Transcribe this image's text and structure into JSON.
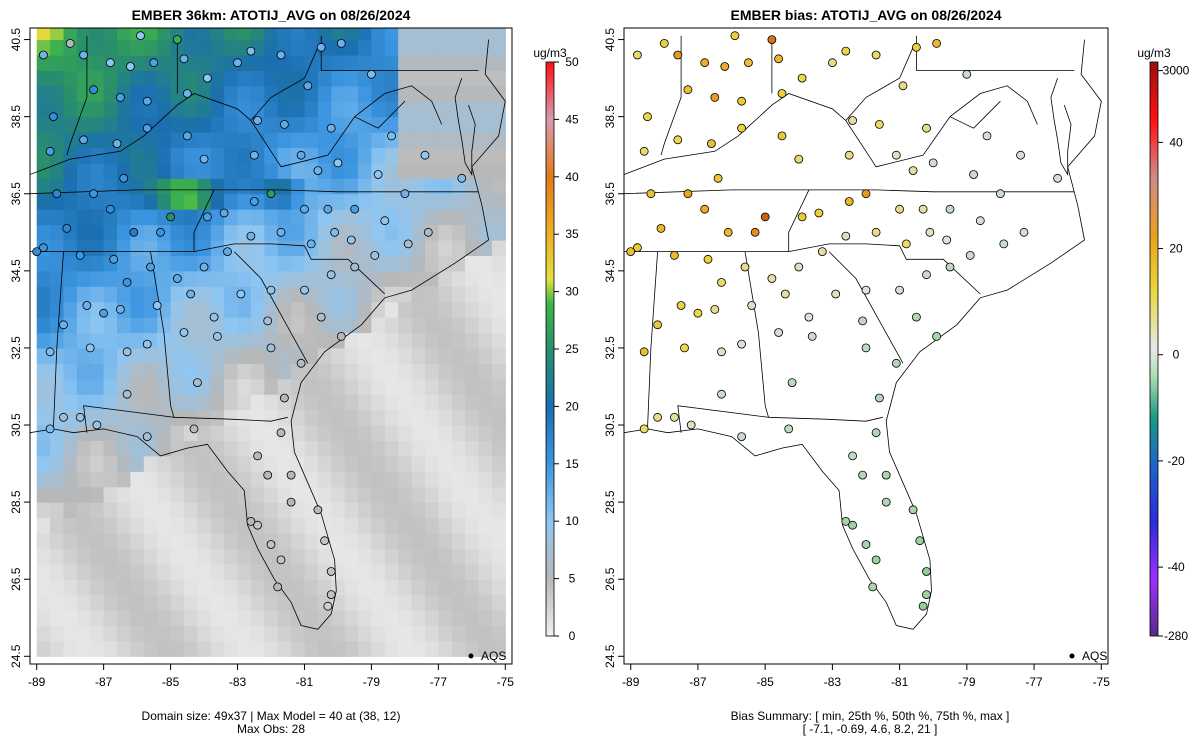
{
  "chart_data": [
    {
      "type": "map",
      "title": "EMBER 36km: ATOTIJ_AVG on 08/26/2024",
      "x_ticks": [
        "-89",
        "-87",
        "-85",
        "-83",
        "-81",
        "-79",
        "-77",
        "-75"
      ],
      "y_ticks": [
        "40.5",
        "38.5",
        "36.5",
        "34.5",
        "32.5",
        "30.5",
        "28.5",
        "26.5",
        "24.5"
      ],
      "xlim": [
        -89.2,
        -74.8
      ],
      "ylim": [
        24.3,
        40.8
      ],
      "colorbar": {
        "unit": "ug/m3",
        "ticks": [
          "0",
          "5",
          "10",
          "15",
          "20",
          "25",
          "30",
          "35",
          "40",
          "45",
          "50"
        ],
        "range": [
          0,
          50
        ]
      },
      "legend": "AQS",
      "caption": [
        "Domain size: 49x37 | Max Model = 40 at (38, 12)",
        "Max Obs: 28"
      ],
      "stations": [
        [
          -88.0,
          40.4,
          6
        ],
        [
          -87.6,
          40.1,
          12
        ],
        [
          -86.8,
          39.9,
          10
        ],
        [
          -86.2,
          39.8,
          10
        ],
        [
          -85.5,
          39.9,
          14
        ],
        [
          -84.6,
          40.0,
          12
        ],
        [
          -87.3,
          39.2,
          16
        ],
        [
          -86.5,
          39.0,
          14
        ],
        [
          -85.7,
          38.9,
          13
        ],
        [
          -84.5,
          39.1,
          12
        ],
        [
          -83.9,
          39.5,
          10
        ],
        [
          -83.0,
          39.9,
          12
        ],
        [
          -82.6,
          40.2,
          11
        ],
        [
          -81.7,
          40.1,
          12
        ],
        [
          -80.5,
          40.3,
          12
        ],
        [
          -79.9,
          40.4,
          12
        ],
        [
          -80.9,
          39.3,
          13
        ],
        [
          -82.4,
          38.4,
          12
        ],
        [
          -81.6,
          38.3,
          13
        ],
        [
          -80.2,
          38.2,
          12
        ],
        [
          -84.5,
          38.0,
          13
        ],
        [
          -85.7,
          38.2,
          14
        ],
        [
          -86.6,
          37.8,
          12
        ],
        [
          -87.6,
          37.9,
          13
        ],
        [
          -88.6,
          37.6,
          14
        ],
        [
          -84.0,
          37.4,
          12
        ],
        [
          -82.5,
          37.5,
          12
        ],
        [
          -81.1,
          37.5,
          13
        ],
        [
          -80.0,
          37.3,
          10
        ],
        [
          -78.8,
          37.0,
          10
        ],
        [
          -77.4,
          37.5,
          10
        ],
        [
          -76.3,
          36.9,
          11
        ],
        [
          -78.0,
          36.5,
          12
        ],
        [
          -79.5,
          36.1,
          14
        ],
        [
          -80.3,
          36.1,
          13
        ],
        [
          -81.0,
          36.1,
          13
        ],
        [
          -82.0,
          36.5,
          26
        ],
        [
          -82.5,
          36.3,
          14
        ],
        [
          -83.4,
          36.0,
          13
        ],
        [
          -83.9,
          35.9,
          14
        ],
        [
          -85.0,
          35.9,
          25
        ],
        [
          -85.3,
          35.5,
          15
        ],
        [
          -86.1,
          35.5,
          18
        ],
        [
          -86.8,
          36.1,
          16
        ],
        [
          -87.3,
          36.5,
          15
        ],
        [
          -88.1,
          35.6,
          17
        ],
        [
          -88.8,
          35.1,
          15
        ],
        [
          -89.0,
          35.0,
          16
        ],
        [
          -88.4,
          36.5,
          17
        ],
        [
          -87.7,
          34.9,
          15
        ],
        [
          -86.7,
          34.8,
          14
        ],
        [
          -86.3,
          34.2,
          15
        ],
        [
          -85.6,
          34.6,
          14
        ],
        [
          -84.8,
          34.3,
          13
        ],
        [
          -84.0,
          34.6,
          12
        ],
        [
          -83.3,
          35.0,
          13
        ],
        [
          -82.6,
          35.4,
          12
        ],
        [
          -81.7,
          35.5,
          12
        ],
        [
          -80.8,
          35.2,
          12
        ],
        [
          -80.1,
          35.5,
          11
        ],
        [
          -79.6,
          35.3,
          10
        ],
        [
          -78.6,
          35.8,
          9
        ],
        [
          -77.9,
          35.2,
          8
        ],
        [
          -77.3,
          35.5,
          7
        ],
        [
          -78.9,
          34.9,
          8
        ],
        [
          -79.5,
          34.6,
          7
        ],
        [
          -80.2,
          34.4,
          8
        ],
        [
          -81.0,
          34.0,
          9
        ],
        [
          -82.0,
          34.0,
          10
        ],
        [
          -82.9,
          33.9,
          10
        ],
        [
          -83.7,
          33.3,
          9
        ],
        [
          -84.4,
          33.9,
          12
        ],
        [
          -85.4,
          33.6,
          10
        ],
        [
          -86.5,
          33.5,
          12
        ],
        [
          -87.0,
          33.4,
          14
        ],
        [
          -87.5,
          33.6,
          12
        ],
        [
          -88.2,
          33.1,
          12
        ],
        [
          -88.6,
          32.4,
          11
        ],
        [
          -87.4,
          32.5,
          10
        ],
        [
          -86.3,
          32.4,
          8
        ],
        [
          -85.7,
          32.6,
          9
        ],
        [
          -84.6,
          32.9,
          10
        ],
        [
          -83.6,
          32.8,
          9
        ],
        [
          -82.0,
          32.5,
          8
        ],
        [
          -81.1,
          32.1,
          6
        ],
        [
          -82.1,
          33.2,
          7
        ],
        [
          -80.5,
          33.3,
          6
        ],
        [
          -79.9,
          32.8,
          5
        ],
        [
          -81.6,
          31.2,
          5
        ],
        [
          -84.2,
          31.6,
          7
        ],
        [
          -86.3,
          31.3,
          6
        ],
        [
          -87.7,
          30.7,
          9
        ],
        [
          -88.2,
          30.7,
          8
        ],
        [
          -88.6,
          30.4,
          11
        ],
        [
          -87.2,
          30.5,
          9
        ],
        [
          -85.7,
          30.2,
          7
        ],
        [
          -84.3,
          30.4,
          6
        ],
        [
          -82.4,
          29.7,
          6
        ],
        [
          -81.7,
          30.3,
          5
        ],
        [
          -81.4,
          29.2,
          5
        ],
        [
          -82.1,
          29.2,
          5
        ],
        [
          -82.6,
          28.0,
          5
        ],
        [
          -81.4,
          28.5,
          5
        ],
        [
          -80.6,
          28.3,
          5
        ],
        [
          -82.4,
          27.9,
          4
        ],
        [
          -82.0,
          27.4,
          4
        ],
        [
          -81.7,
          27.0,
          4
        ],
        [
          -80.4,
          27.5,
          4
        ],
        [
          -80.2,
          26.7,
          4
        ],
        [
          -80.2,
          26.1,
          4
        ],
        [
          -81.8,
          26.3,
          5
        ],
        [
          -80.3,
          25.8,
          3
        ],
        [
          -84.8,
          40.5,
          28
        ],
        [
          -85.9,
          40.6,
          10
        ],
        [
          -88.8,
          40.1,
          12
        ],
        [
          -78.4,
          38.0,
          11
        ],
        [
          -80.6,
          37.1,
          12
        ],
        [
          -86.4,
          36.9,
          15
        ],
        [
          -88.5,
          38.5,
          16
        ],
        [
          -79.0,
          39.6,
          11
        ]
      ]
    },
    {
      "type": "map",
      "title": "EMBER bias: ATOTIJ_AVG on 08/26/2024",
      "x_ticks": [
        "-89",
        "-87",
        "-85",
        "-83",
        "-81",
        "-79",
        "-77",
        "-75"
      ],
      "y_ticks": [
        "40.5",
        "38.5",
        "36.5",
        "34.5",
        "32.5",
        "30.5",
        "28.5",
        "26.5",
        "24.5"
      ],
      "xlim": [
        -89.2,
        -74.8
      ],
      "ylim": [
        24.3,
        40.8
      ],
      "colorbar": {
        "unit": "ug/m3",
        "ticks": [
          "3000",
          "40",
          "20",
          "0",
          "-20",
          "-40",
          "-280"
        ],
        "range": [
          -280,
          3000
        ]
      },
      "legend": "AQS",
      "caption": [
        "Bias Summary: [ min, 25th %, 50th %, 75th %, max ]",
        "[ -7.1,   -0.69,   4.6,   8.2,   21 ]"
      ],
      "stations": [
        [
          -88.0,
          40.4,
          6
        ],
        [
          -87.6,
          40.1,
          12
        ],
        [
          -86.8,
          39.9,
          10
        ],
        [
          -86.2,
          39.8,
          10
        ],
        [
          -85.5,
          39.9,
          8
        ],
        [
          -84.6,
          40.0,
          9
        ],
        [
          -87.3,
          39.2,
          8
        ],
        [
          -86.5,
          39.0,
          12
        ],
        [
          -85.7,
          38.9,
          7
        ],
        [
          -84.5,
          39.1,
          6
        ],
        [
          -83.9,
          39.5,
          5
        ],
        [
          -83.0,
          39.9,
          3
        ],
        [
          -82.6,
          40.2,
          5
        ],
        [
          -81.7,
          40.1,
          4
        ],
        [
          -80.5,
          40.3,
          6
        ],
        [
          -79.9,
          40.4,
          9
        ],
        [
          -80.9,
          39.3,
          3
        ],
        [
          -82.4,
          38.4,
          2
        ],
        [
          -81.6,
          38.3,
          4
        ],
        [
          -80.2,
          38.2,
          3
        ],
        [
          -84.5,
          38.0,
          7
        ],
        [
          -85.7,
          38.2,
          6
        ],
        [
          -86.6,
          37.8,
          8
        ],
        [
          -87.6,
          37.9,
          5
        ],
        [
          -88.6,
          37.6,
          4
        ],
        [
          -84.0,
          37.4,
          4
        ],
        [
          -82.5,
          37.5,
          3
        ],
        [
          -81.1,
          37.5,
          1
        ],
        [
          -80.0,
          37.3,
          -1
        ],
        [
          -78.8,
          37.0,
          -2
        ],
        [
          -77.4,
          37.5,
          -1
        ],
        [
          -76.3,
          36.9,
          -1
        ],
        [
          -78.0,
          36.5,
          -2
        ],
        [
          -79.5,
          36.1,
          -3
        ],
        [
          -80.3,
          36.1,
          2
        ],
        [
          -81.0,
          36.1,
          3
        ],
        [
          -82.0,
          36.5,
          12
        ],
        [
          -82.5,
          36.3,
          9
        ],
        [
          -83.4,
          36.0,
          6
        ],
        [
          -83.9,
          35.9,
          7
        ],
        [
          -85.0,
          35.9,
          21
        ],
        [
          -85.3,
          35.5,
          14
        ],
        [
          -86.1,
          35.5,
          9
        ],
        [
          -86.8,
          36.1,
          10
        ],
        [
          -87.3,
          36.5,
          11
        ],
        [
          -88.1,
          35.6,
          9
        ],
        [
          -88.8,
          35.1,
          7
        ],
        [
          -89.0,
          35.0,
          8
        ],
        [
          -88.4,
          36.5,
          8
        ],
        [
          -87.7,
          34.9,
          9
        ],
        [
          -86.7,
          34.8,
          6
        ],
        [
          -86.3,
          34.2,
          4
        ],
        [
          -85.6,
          34.6,
          3
        ],
        [
          -84.8,
          34.3,
          2
        ],
        [
          -84.0,
          34.6,
          1
        ],
        [
          -83.3,
          35.0,
          2
        ],
        [
          -82.6,
          35.4,
          1
        ],
        [
          -81.7,
          35.5,
          3
        ],
        [
          -80.8,
          35.2,
          4
        ],
        [
          -80.1,
          35.5,
          1
        ],
        [
          -79.6,
          35.3,
          0
        ],
        [
          -78.6,
          35.8,
          -1
        ],
        [
          -77.9,
          35.2,
          -2
        ],
        [
          -77.3,
          35.5,
          -1
        ],
        [
          -78.9,
          34.9,
          -2
        ],
        [
          -79.5,
          34.6,
          -3
        ],
        [
          -80.2,
          34.4,
          -2
        ],
        [
          -81.0,
          34.0,
          -1
        ],
        [
          -82.0,
          34.0,
          0
        ],
        [
          -82.9,
          33.9,
          1
        ],
        [
          -83.7,
          33.3,
          0
        ],
        [
          -84.4,
          33.9,
          2
        ],
        [
          -85.4,
          33.6,
          1
        ],
        [
          -86.5,
          33.5,
          3
        ],
        [
          -87.0,
          33.4,
          5
        ],
        [
          -87.5,
          33.6,
          6
        ],
        [
          -88.2,
          33.1,
          7
        ],
        [
          -88.6,
          32.4,
          8
        ],
        [
          -87.4,
          32.5,
          5
        ],
        [
          -86.3,
          32.4,
          1
        ],
        [
          -85.7,
          32.6,
          0
        ],
        [
          -84.6,
          32.9,
          -1
        ],
        [
          -83.6,
          32.8,
          -2
        ],
        [
          -82.0,
          32.5,
          -3
        ],
        [
          -81.1,
          32.1,
          -4
        ],
        [
          -82.1,
          33.2,
          -3
        ],
        [
          -80.5,
          33.3,
          -4
        ],
        [
          -79.9,
          32.8,
          -5
        ],
        [
          -81.6,
          31.2,
          -4
        ],
        [
          -84.2,
          31.6,
          -3
        ],
        [
          -86.3,
          31.3,
          -2
        ],
        [
          -87.7,
          30.7,
          2
        ],
        [
          -88.2,
          30.7,
          3
        ],
        [
          -88.6,
          30.4,
          4
        ],
        [
          -87.2,
          30.5,
          1
        ],
        [
          -85.7,
          30.2,
          -2
        ],
        [
          -84.3,
          30.4,
          -3
        ],
        [
          -82.4,
          29.7,
          -3
        ],
        [
          -81.7,
          30.3,
          -4
        ],
        [
          -81.4,
          29.2,
          -5
        ],
        [
          -82.1,
          29.2,
          -4
        ],
        [
          -82.6,
          28.0,
          -5
        ],
        [
          -81.4,
          28.5,
          -4
        ],
        [
          -80.6,
          28.3,
          -5
        ],
        [
          -82.4,
          27.9,
          -6
        ],
        [
          -82.0,
          27.4,
          -5
        ],
        [
          -81.7,
          27.0,
          -6
        ],
        [
          -80.4,
          27.5,
          -6
        ],
        [
          -80.2,
          26.7,
          -7
        ],
        [
          -80.2,
          26.1,
          -6
        ],
        [
          -81.8,
          26.3,
          -5
        ],
        [
          -80.3,
          25.8,
          -7
        ],
        [
          -84.8,
          40.5,
          18
        ],
        [
          -85.9,
          40.6,
          6
        ],
        [
          -88.8,
          40.1,
          4
        ],
        [
          -78.4,
          38.0,
          -1
        ],
        [
          -80.6,
          37.1,
          2
        ],
        [
          -86.4,
          36.9,
          7
        ],
        [
          -88.5,
          38.5,
          5
        ],
        [
          -79.0,
          39.6,
          -2
        ]
      ]
    }
  ]
}
